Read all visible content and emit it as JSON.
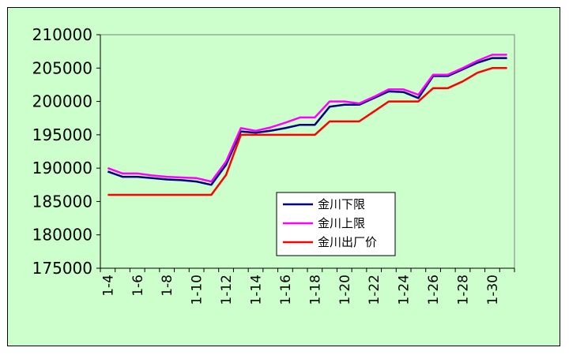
{
  "chart_data": {
    "type": "line",
    "title": "",
    "xlabel": "",
    "ylabel": "",
    "ylim": [
      175000,
      210000
    ],
    "y_ticks": [
      "175000",
      "180000",
      "185000",
      "190000",
      "195000",
      "200000",
      "205000",
      "210000"
    ],
    "x": [
      "1-4",
      "1-5",
      "1-6",
      "1-7",
      "1-8",
      "1-9",
      "1-10",
      "1-11",
      "1-12",
      "1-13",
      "1-14",
      "1-15",
      "1-16",
      "1-17",
      "1-18",
      "1-19",
      "1-20",
      "1-21",
      "1-22",
      "1-23",
      "1-24",
      "1-25",
      "1-26",
      "1-27",
      "1-28",
      "1-29",
      "1-30",
      "1-31"
    ],
    "x_tick_labels": [
      "1-4",
      "1-6",
      "1-8",
      "1-10",
      "1-12",
      "1-14",
      "1-16",
      "1-18",
      "1-20",
      "1-22",
      "1-24",
      "1-26",
      "1-28",
      "1-30"
    ],
    "grid": false,
    "legend_position": "center-right",
    "series": [
      {
        "name": "金川下限",
        "color": "#000080",
        "values": [
          189500,
          188700,
          188700,
          188500,
          188300,
          188200,
          188000,
          187500,
          190500,
          195500,
          195300,
          195600,
          196000,
          196500,
          196500,
          199200,
          199500,
          199500,
          200500,
          201500,
          201400,
          200500,
          203800,
          203800,
          204800,
          205800,
          206500,
          206500
        ]
      },
      {
        "name": "金川上限",
        "color": "#ff00ff",
        "values": [
          190000,
          189200,
          189200,
          188900,
          188700,
          188600,
          188500,
          188000,
          191000,
          196000,
          195600,
          196100,
          196800,
          197600,
          197600,
          200000,
          200000,
          199700,
          200700,
          201800,
          201800,
          201000,
          204000,
          204000,
          205000,
          206100,
          207000,
          207000
        ]
      },
      {
        "name": "金川出厂价",
        "color": "#ff0000",
        "values": [
          186000,
          186000,
          186000,
          186000,
          186000,
          186000,
          186000,
          186000,
          189000,
          195000,
          195000,
          195000,
          195000,
          195000,
          195000,
          197000,
          197000,
          197000,
          198500,
          200000,
          200000,
          200000,
          202000,
          202000,
          203000,
          204300,
          205000,
          205000
        ]
      }
    ]
  }
}
